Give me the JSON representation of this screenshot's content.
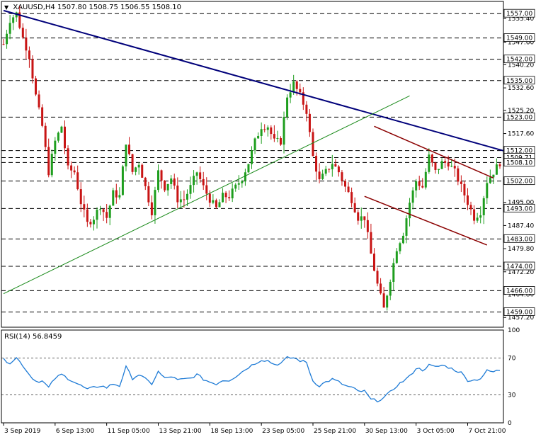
{
  "header": {
    "symbol": "XAUUSD,H4",
    "open": "1507.80",
    "high": "1508.75",
    "low": "1506.55",
    "close": "1508.10"
  },
  "rsi_header": {
    "label": "RSI(14)",
    "value": "56.8459"
  },
  "colors": {
    "bull": "#1e9e1e",
    "bear": "#c81414",
    "downtrend": "#00007a",
    "uptrend": "#1a8a1a",
    "channel": "#8b0000",
    "rsi_line": "#1e7bd6",
    "grid": "#000000",
    "label_bg": "#ffffff"
  },
  "chart_data": [
    {
      "type": "candlestick",
      "title": "XAUUSD,H4",
      "ylim": [
        1454,
        1561
      ],
      "price_ticks": [
        "1555.40",
        "1547.60",
        "1540.20",
        "1532.60",
        "1525.20",
        "1517.60",
        "1510.00",
        "1502.60",
        "1495.00",
        "1487.40",
        "1479.80",
        "1472.20",
        "1464.80",
        "1457.20"
      ],
      "price_tick_values": [
        1555.4,
        1547.6,
        1540.2,
        1532.6,
        1525.2,
        1517.6,
        1510.0,
        1502.6,
        1495.0,
        1487.4,
        1479.8,
        1472.2,
        1464.8,
        1457.2
      ],
      "horizontal_levels": [
        {
          "label": "1557.00",
          "value": 1557.0
        },
        {
          "label": "1549.00",
          "value": 1549.0
        },
        {
          "label": "1542.00",
          "value": 1542.0
        },
        {
          "label": "1535.00",
          "value": 1535.0
        },
        {
          "label": "1523.00",
          "value": 1523.0
        },
        {
          "label": "1512.00",
          "value": 1512.0
        },
        {
          "label": "1509.71",
          "value": 1509.71
        },
        {
          "label": "1508.10",
          "value": 1508.1
        },
        {
          "label": "1502.00",
          "value": 1502.0
        },
        {
          "label": "1493.00",
          "value": 1493.0
        },
        {
          "label": "1483.00",
          "value": 1483.0
        },
        {
          "label": "1474.00",
          "value": 1474.0
        },
        {
          "label": "1466.00",
          "value": 1466.0
        },
        {
          "label": "1459.00",
          "value": 1459.0
        }
      ],
      "x_labels": [
        "3 Sep 2019",
        "6 Sep 13:00",
        "11 Sep 05:00",
        "13 Sep 21:00",
        "18 Sep 13:00",
        "23 Sep 05:00",
        "25 Sep 21:00",
        "30 Sep 13:00",
        "3 Oct 05:00",
        "7 Oct 21:00"
      ],
      "x_label_positions": [
        0,
        16,
        32,
        48,
        64,
        80,
        96,
        112,
        128,
        144
      ],
      "candle_count": 155,
      "close_path": [
        [
          0,
          1547
        ],
        [
          2,
          1555
        ],
        [
          4,
          1557
        ],
        [
          6,
          1549
        ],
        [
          8,
          1543
        ],
        [
          10,
          1530
        ],
        [
          12,
          1520
        ],
        [
          14,
          1505
        ],
        [
          16,
          1515
        ],
        [
          18,
          1520
        ],
        [
          20,
          1506
        ],
        [
          22,
          1505
        ],
        [
          24,
          1495
        ],
        [
          26,
          1488
        ],
        [
          28,
          1490
        ],
        [
          30,
          1494
        ],
        [
          32,
          1490
        ],
        [
          34,
          1498
        ],
        [
          36,
          1497
        ],
        [
          38,
          1515
        ],
        [
          40,
          1505
        ],
        [
          42,
          1508
        ],
        [
          44,
          1500
        ],
        [
          46,
          1492
        ],
        [
          48,
          1505
        ],
        [
          50,
          1500
        ],
        [
          52,
          1503
        ],
        [
          54,
          1496
        ],
        [
          56,
          1496
        ],
        [
          58,
          1500
        ],
        [
          60,
          1505
        ],
        [
          62,
          1500
        ],
        [
          64,
          1496
        ],
        [
          66,
          1493
        ],
        [
          68,
          1497
        ],
        [
          70,
          1497
        ],
        [
          72,
          1500
        ],
        [
          74,
          1503
        ],
        [
          76,
          1508
        ],
        [
          78,
          1515
        ],
        [
          80,
          1520
        ],
        [
          82,
          1520
        ],
        [
          84,
          1515
        ],
        [
          86,
          1515
        ],
        [
          88,
          1530
        ],
        [
          90,
          1534
        ],
        [
          92,
          1530
        ],
        [
          94,
          1525
        ],
        [
          96,
          1510
        ],
        [
          98,
          1502
        ],
        [
          100,
          1505
        ],
        [
          102,
          1508
        ],
        [
          104,
          1505
        ],
        [
          106,
          1500
        ],
        [
          108,
          1496
        ],
        [
          110,
          1490
        ],
        [
          112,
          1490
        ],
        [
          114,
          1478
        ],
        [
          116,
          1468
        ],
        [
          118,
          1460
        ],
        [
          120,
          1470
        ],
        [
          122,
          1480
        ],
        [
          124,
          1485
        ],
        [
          126,
          1495
        ],
        [
          128,
          1502
        ],
        [
          130,
          1500
        ],
        [
          132,
          1510
        ],
        [
          134,
          1505
        ],
        [
          136,
          1508
        ],
        [
          138,
          1508
        ],
        [
          140,
          1505
        ],
        [
          142,
          1500
        ],
        [
          144,
          1495
        ],
        [
          146,
          1490
        ],
        [
          148,
          1492
        ],
        [
          150,
          1502
        ],
        [
          152,
          1505
        ],
        [
          154,
          1508.1
        ]
      ],
      "trendlines": [
        {
          "name": "downtrend",
          "from": [
            0,
            1558
          ],
          "to": [
            155,
            1512
          ]
        },
        {
          "name": "uptrend",
          "from": [
            0,
            1465
          ],
          "to": [
            126,
            1530
          ]
        },
        {
          "name": "channel-upper",
          "from": [
            115,
            1520
          ],
          "to": [
            152,
            1503
          ]
        },
        {
          "name": "channel-lower",
          "from": [
            112,
            1497
          ],
          "to": [
            150,
            1481
          ]
        }
      ]
    },
    {
      "type": "line",
      "title": "RSI(14) 56.8459",
      "ylim": [
        0,
        100
      ],
      "ticks": [
        "100",
        "70",
        "30",
        "0"
      ],
      "tick_values": [
        100,
        70,
        30,
        0
      ],
      "levels": [
        70,
        30
      ],
      "rsi_path": [
        [
          0,
          68
        ],
        [
          2,
          65
        ],
        [
          4,
          70
        ],
        [
          6,
          62
        ],
        [
          8,
          52
        ],
        [
          10,
          45
        ],
        [
          12,
          45
        ],
        [
          14,
          38
        ],
        [
          16,
          48
        ],
        [
          18,
          52
        ],
        [
          20,
          48
        ],
        [
          22,
          44
        ],
        [
          24,
          40
        ],
        [
          26,
          36
        ],
        [
          28,
          38
        ],
        [
          30,
          40
        ],
        [
          32,
          38
        ],
        [
          34,
          42
        ],
        [
          36,
          40
        ],
        [
          38,
          60
        ],
        [
          40,
          48
        ],
        [
          42,
          52
        ],
        [
          44,
          47
        ],
        [
          46,
          42
        ],
        [
          48,
          55
        ],
        [
          50,
          48
        ],
        [
          52,
          50
        ],
        [
          54,
          46
        ],
        [
          56,
          47
        ],
        [
          58,
          48
        ],
        [
          60,
          52
        ],
        [
          62,
          47
        ],
        [
          64,
          44
        ],
        [
          66,
          42
        ],
        [
          68,
          46
        ],
        [
          70,
          46
        ],
        [
          72,
          50
        ],
        [
          74,
          55
        ],
        [
          76,
          60
        ],
        [
          78,
          64
        ],
        [
          80,
          68
        ],
        [
          82,
          67
        ],
        [
          84,
          63
        ],
        [
          86,
          64
        ],
        [
          88,
          70
        ],
        [
          90,
          70
        ],
        [
          92,
          67
        ],
        [
          94,
          65
        ],
        [
          96,
          45
        ],
        [
          98,
          40
        ],
        [
          100,
          44
        ],
        [
          102,
          47
        ],
        [
          104,
          44
        ],
        [
          106,
          40
        ],
        [
          108,
          38
        ],
        [
          110,
          34
        ],
        [
          112,
          34
        ],
        [
          114,
          25
        ],
        [
          116,
          24
        ],
        [
          118,
          27
        ],
        [
          120,
          33
        ],
        [
          122,
          40
        ],
        [
          124,
          45
        ],
        [
          126,
          50
        ],
        [
          128,
          59
        ],
        [
          130,
          57
        ],
        [
          132,
          62
        ],
        [
          134,
          60
        ],
        [
          136,
          62
        ],
        [
          138,
          60
        ],
        [
          140,
          57
        ],
        [
          142,
          54
        ],
        [
          144,
          46
        ],
        [
          146,
          46
        ],
        [
          148,
          48
        ],
        [
          150,
          56
        ],
        [
          152,
          55
        ],
        [
          154,
          56.85
        ]
      ]
    }
  ]
}
